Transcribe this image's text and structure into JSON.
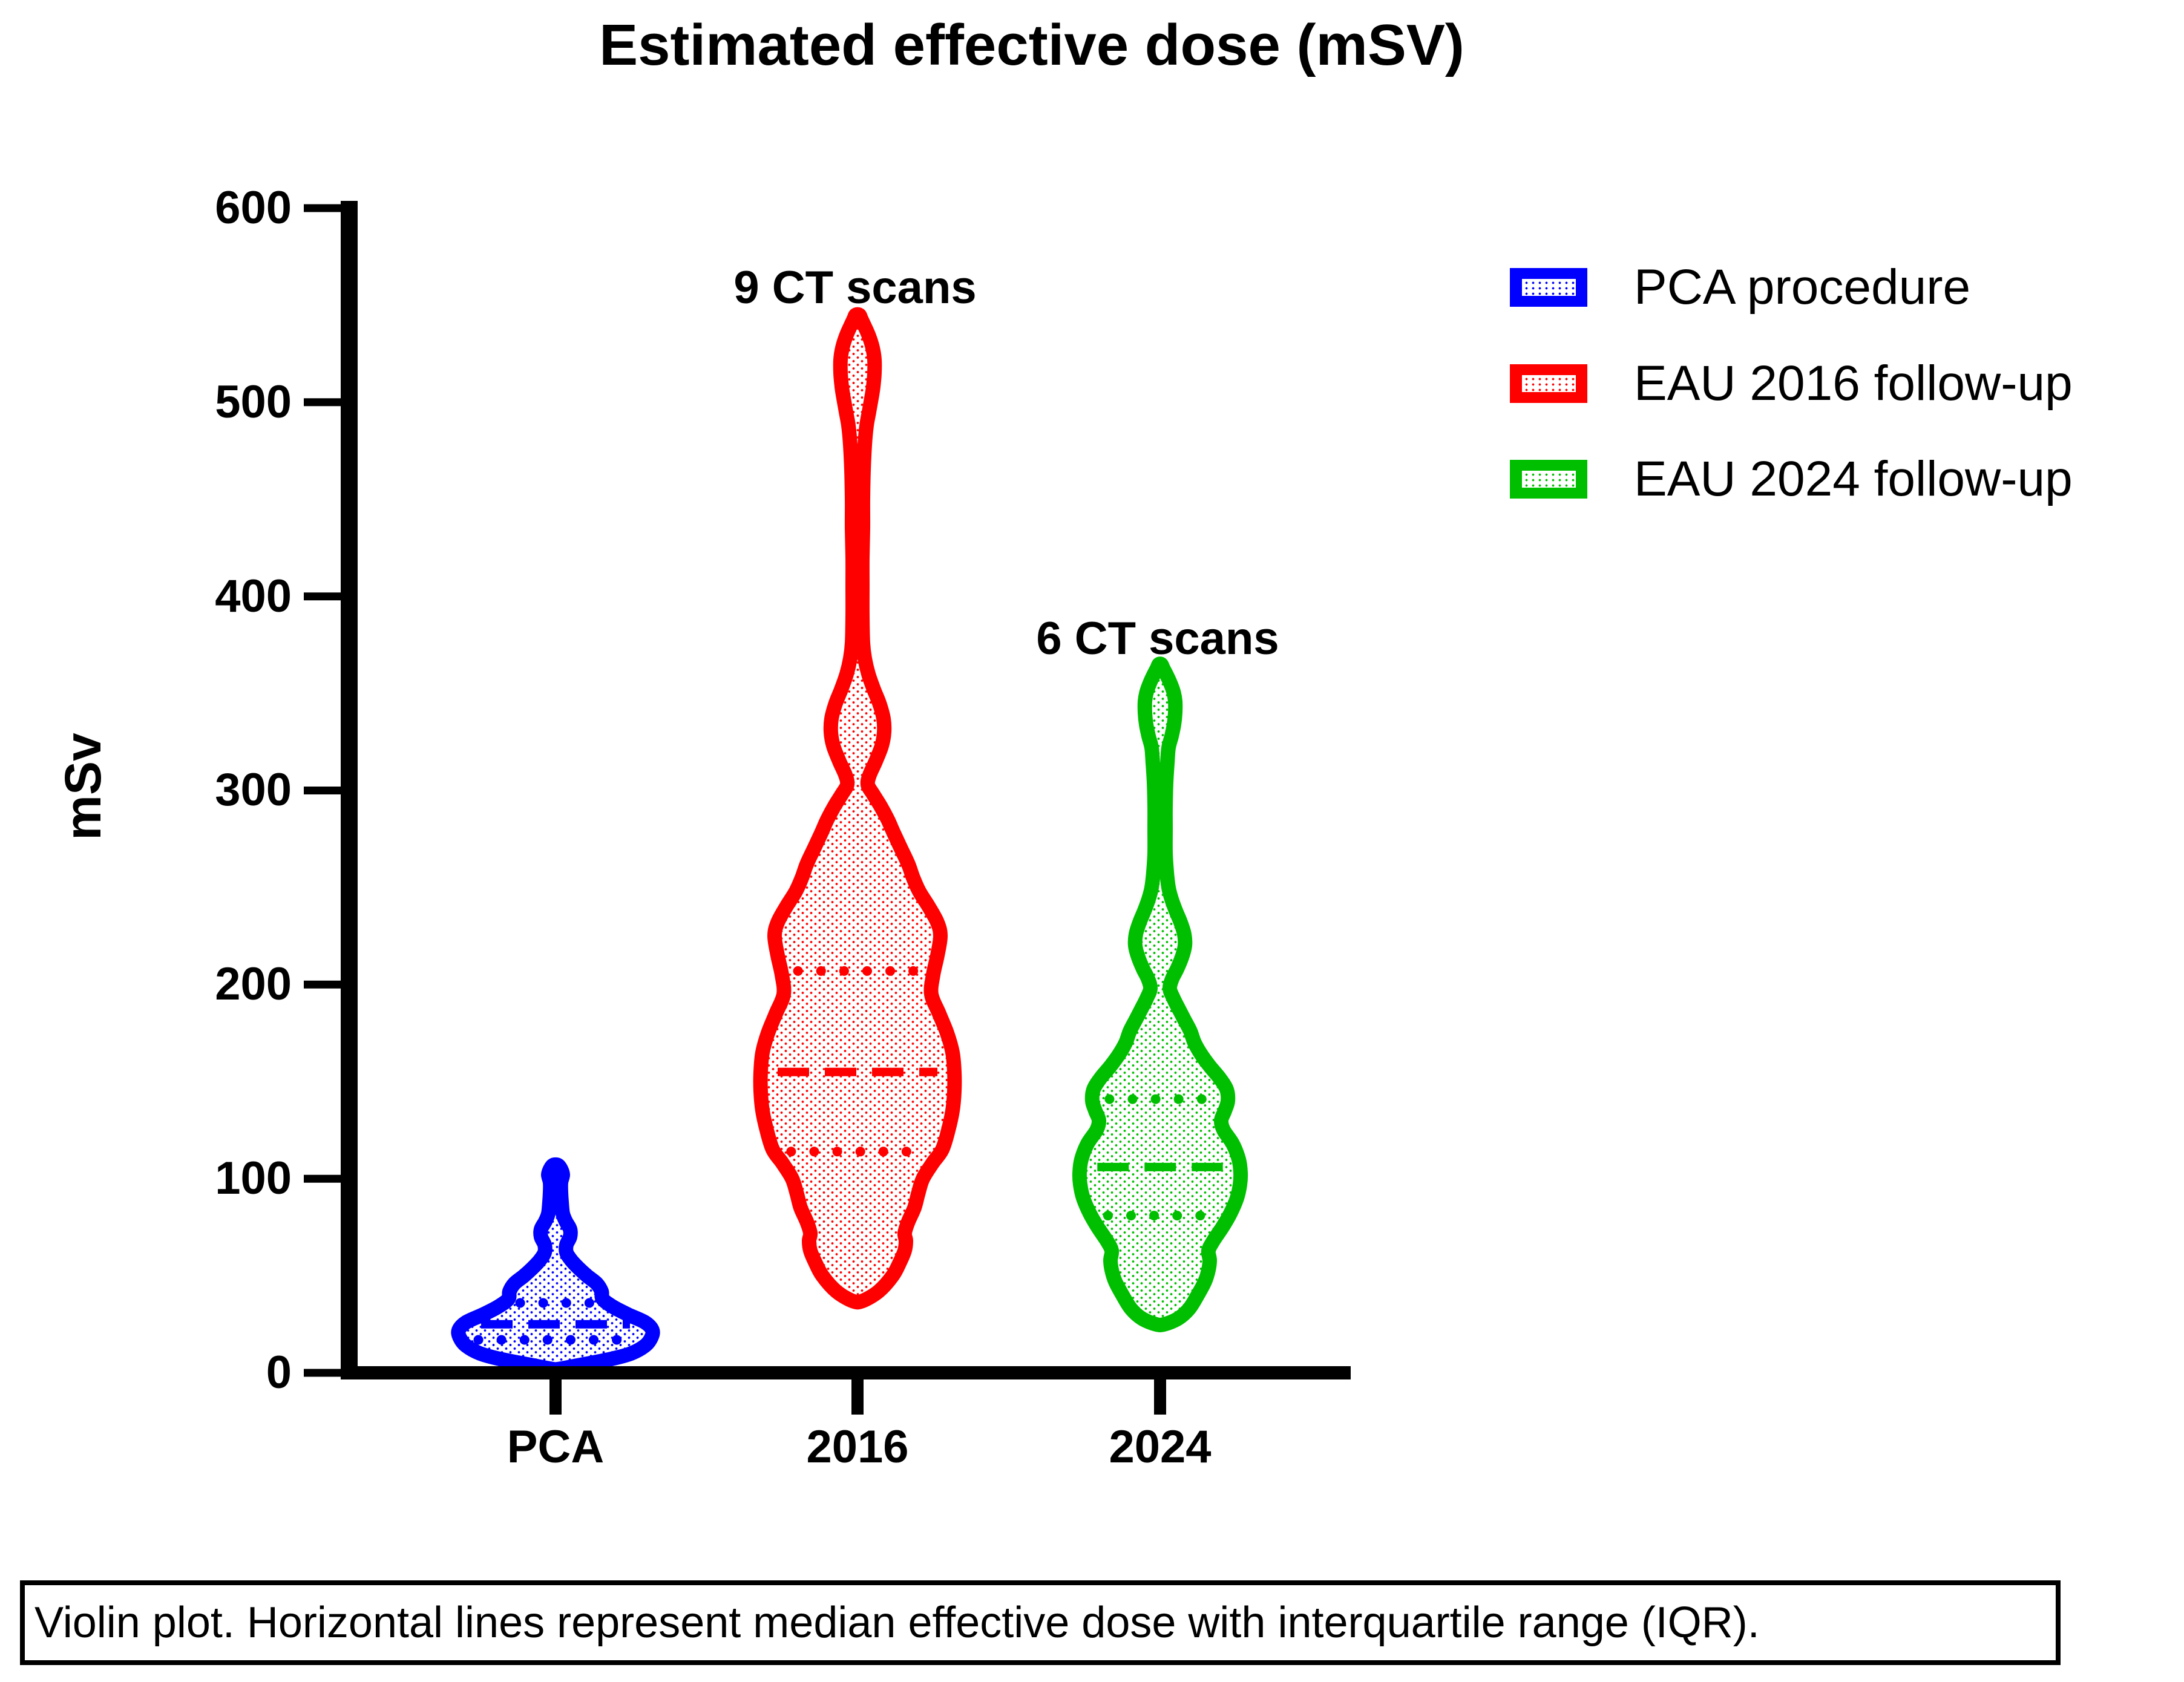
{
  "title": "Estimated effective dose (mSV)",
  "y_axis": {
    "label": "mSv",
    "ticks": [
      "0",
      "100",
      "200",
      "300",
      "400",
      "500",
      "600"
    ]
  },
  "x_axis": {
    "categories": [
      "PCA",
      "2016",
      "2024"
    ]
  },
  "legend": [
    {
      "label": "PCA procedure",
      "color": "#0000ff"
    },
    {
      "label": "EAU 2016 follow-up",
      "color": "#ff0000"
    },
    {
      "label": "EAU 2024 follow-up",
      "color": "#00bf00"
    }
  ],
  "footnote": "Violin plot. Horizontal lines represent median effective dose with interquartile range  (IQR).",
  "chart_data": {
    "type": "violin",
    "title": "Estimated effective dose (mSV)",
    "ylabel": "mSv",
    "ylim": [
      0,
      600
    ],
    "grid": false,
    "legend_position": "top-right",
    "categories": [
      "PCA",
      "2016",
      "2024"
    ],
    "series": [
      {
        "name": "PCA procedure",
        "x": "PCA",
        "color": "#0000ff",
        "annotation": "",
        "stats": {
          "median": 25,
          "q1": 17,
          "q3": 36,
          "min": 2,
          "max": 107
        },
        "profile": [
          [
            2,
            6
          ],
          [
            4,
            40
          ],
          [
            7,
            90
          ],
          [
            10,
            125
          ],
          [
            14,
            148
          ],
          [
            18,
            158
          ],
          [
            22,
            160
          ],
          [
            26,
            148
          ],
          [
            30,
            120
          ],
          [
            34,
            95
          ],
          [
            38,
            78
          ],
          [
            42,
            76
          ],
          [
            46,
            68
          ],
          [
            50,
            52
          ],
          [
            54,
            38
          ],
          [
            58,
            26
          ],
          [
            62,
            18
          ],
          [
            66,
            18
          ],
          [
            70,
            24
          ],
          [
            74,
            24
          ],
          [
            78,
            17
          ],
          [
            82,
            12
          ],
          [
            88,
            10
          ],
          [
            93,
            9
          ],
          [
            98,
            9
          ],
          [
            102,
            12
          ],
          [
            105,
            9
          ],
          [
            107,
            4
          ]
        ]
      },
      {
        "name": "EAU 2016 follow-up",
        "x": "2016",
        "color": "#ff0000",
        "annotation": "9 CT scans",
        "stats": {
          "median": 155,
          "q1": 114,
          "q3": 207,
          "min": 37,
          "max": 545
        },
        "profile": [
          [
            37,
            8
          ],
          [
            42,
            35
          ],
          [
            50,
            58
          ],
          [
            57,
            70
          ],
          [
            63,
            78
          ],
          [
            68,
            80
          ],
          [
            72,
            78
          ],
          [
            78,
            84
          ],
          [
            85,
            94
          ],
          [
            92,
            100
          ],
          [
            100,
            108
          ],
          [
            108,
            124
          ],
          [
            115,
            140
          ],
          [
            125,
            150
          ],
          [
            135,
            157
          ],
          [
            145,
            160
          ],
          [
            155,
            160
          ],
          [
            165,
            157
          ],
          [
            175,
            148
          ],
          [
            185,
            135
          ],
          [
            195,
            122
          ],
          [
            205,
            125
          ],
          [
            215,
            132
          ],
          [
            225,
            137
          ],
          [
            232,
            132
          ],
          [
            240,
            118
          ],
          [
            248,
            102
          ],
          [
            255,
            92
          ],
          [
            262,
            84
          ],
          [
            270,
            72
          ],
          [
            278,
            60
          ],
          [
            285,
            50
          ],
          [
            292,
            38
          ],
          [
            298,
            26
          ],
          [
            303,
            17
          ],
          [
            308,
            20
          ],
          [
            315,
            30
          ],
          [
            323,
            40
          ],
          [
            330,
            44
          ],
          [
            337,
            43
          ],
          [
            345,
            36
          ],
          [
            352,
            27
          ],
          [
            360,
            18
          ],
          [
            368,
            12
          ],
          [
            376,
            9
          ],
          [
            390,
            8
          ],
          [
            405,
            8
          ],
          [
            420,
            8
          ],
          [
            435,
            9
          ],
          [
            450,
            9
          ],
          [
            465,
            10
          ],
          [
            478,
            12
          ],
          [
            488,
            15
          ],
          [
            495,
            19
          ],
          [
            502,
            23
          ],
          [
            508,
            26
          ],
          [
            515,
            28
          ],
          [
            522,
            28
          ],
          [
            528,
            25
          ],
          [
            534,
            19
          ],
          [
            539,
            12
          ],
          [
            543,
            6
          ],
          [
            545,
            3
          ]
        ]
      },
      {
        "name": "EAU 2024 follow-up",
        "x": "2024",
        "color": "#00bf00",
        "annotation": "6 CT scans",
        "stats": {
          "median": 106,
          "q1": 81,
          "q3": 141,
          "min": 25,
          "max": 365
        },
        "profile": [
          [
            25,
            7
          ],
          [
            28,
            30
          ],
          [
            33,
            48
          ],
          [
            40,
            62
          ],
          [
            47,
            74
          ],
          [
            53,
            80
          ],
          [
            58,
            82
          ],
          [
            63,
            80
          ],
          [
            68,
            88
          ],
          [
            75,
            103
          ],
          [
            82,
            116
          ],
          [
            90,
            127
          ],
          [
            97,
            132
          ],
          [
            103,
            133
          ],
          [
            110,
            130
          ],
          [
            118,
            120
          ],
          [
            125,
            105
          ],
          [
            130,
            101
          ],
          [
            135,
            107
          ],
          [
            140,
            112
          ],
          [
            146,
            110
          ],
          [
            152,
            98
          ],
          [
            158,
            82
          ],
          [
            164,
            68
          ],
          [
            170,
            57
          ],
          [
            176,
            50
          ],
          [
            182,
            40
          ],
          [
            188,
            30
          ],
          [
            193,
            22
          ],
          [
            198,
            16
          ],
          [
            203,
            20
          ],
          [
            208,
            28
          ],
          [
            214,
            36
          ],
          [
            220,
            41
          ],
          [
            226,
            40
          ],
          [
            232,
            34
          ],
          [
            238,
            26
          ],
          [
            244,
            19
          ],
          [
            250,
            14
          ],
          [
            258,
            11
          ],
          [
            268,
            9
          ],
          [
            280,
            9
          ],
          [
            292,
            9
          ],
          [
            304,
            10
          ],
          [
            314,
            12
          ],
          [
            322,
            14
          ],
          [
            328,
            19
          ],
          [
            334,
            23
          ],
          [
            340,
            25
          ],
          [
            346,
            25
          ],
          [
            351,
            22
          ],
          [
            356,
            16
          ],
          [
            360,
            10
          ],
          [
            363,
            5
          ],
          [
            365,
            2
          ]
        ]
      }
    ]
  }
}
